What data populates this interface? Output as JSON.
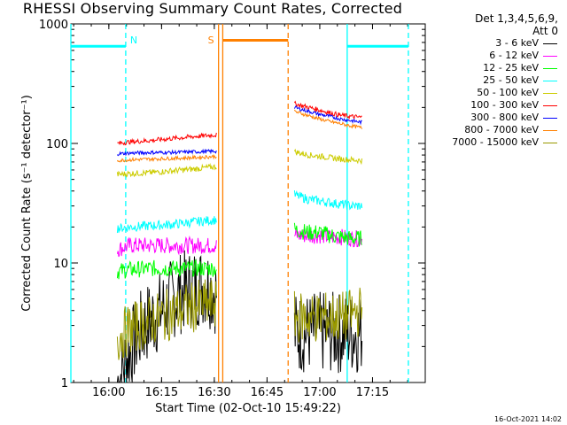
{
  "chart_data": {
    "type": "line",
    "title": "RHESSI Observing Summary Count Rates, Corrected",
    "xlabel": "Start Time (02-Oct-10 15:49:22)",
    "ylabel": "Corrected Count Rate (s⁻¹ detector⁻¹)",
    "y_scale": "log",
    "ylim": [
      1,
      1000
    ],
    "xlim_minutes": [
      15.82,
      17.5
    ],
    "x_ticks": [
      {
        "t": 16.0,
        "label": "16:00"
      },
      {
        "t": 16.25,
        "label": "16:15"
      },
      {
        "t": 16.5,
        "label": "16:30"
      },
      {
        "t": 16.75,
        "label": "16:45"
      },
      {
        "t": 17.0,
        "label": "17:00"
      },
      {
        "t": 17.25,
        "label": "17:15"
      }
    ],
    "y_ticks": [
      {
        "v": 1,
        "label": "1"
      },
      {
        "v": 10,
        "label": "10"
      },
      {
        "v": 100,
        "label": "100"
      },
      {
        "v": 1000,
        "label": "1000"
      }
    ],
    "legend_header": [
      "Det 1,3,4,5,6,9,",
      "Att 0"
    ],
    "series": [
      {
        "name": "3 - 6 keV",
        "color": "#000000",
        "segments": [
          {
            "t": [
              16.04,
              16.06,
              16.08,
              16.11,
              16.14,
              16.17,
              16.21,
              16.25,
              16.29,
              16.33,
              16.38,
              16.43,
              16.47,
              16.51
            ],
            "v": [
              1.0,
              1.2,
              1.5,
              2.0,
              2.5,
              3.0,
              3.5,
              4.0,
              4.8,
              5.5,
              6.0,
              6.5,
              6.5,
              5.5
            ]
          },
          {
            "t": [
              16.88,
              16.95,
              17.0,
              17.05,
              17.1,
              17.15,
              17.2
            ],
            "v": [
              2.6,
              2.6,
              2.6,
              2.6,
              2.6,
              2.6,
              2.6
            ]
          }
        ]
      },
      {
        "name": "6 - 12 keV",
        "color": "#ff00ff",
        "segments": [
          {
            "t": [
              16.04,
              16.1,
              16.2,
              16.3,
              16.4,
              16.51
            ],
            "v": [
              13,
              14,
              14,
              14,
              14,
              14
            ]
          },
          {
            "t": [
              16.88,
              16.95,
              17.0,
              17.05,
              17.1,
              17.15,
              17.2
            ],
            "v": [
              17,
              17,
              17,
              16.5,
              16.5,
              16,
              16
            ]
          }
        ]
      },
      {
        "name": "12 - 25 keV",
        "color": "#00ff00",
        "segments": [
          {
            "t": [
              16.04,
              16.1,
              16.2,
              16.3,
              16.4,
              16.51
            ],
            "v": [
              8.5,
              8.8,
              9,
              9,
              9,
              9
            ]
          },
          {
            "t": [
              16.88,
              16.95,
              17.0,
              17.05,
              17.1,
              17.15,
              17.2
            ],
            "v": [
              19,
              18,
              18,
              17,
              16.5,
              16,
              16
            ]
          }
        ]
      },
      {
        "name": "25 - 50 keV",
        "color": "#00ffff",
        "segments": [
          {
            "t": [
              16.04,
              16.1,
              16.2,
              16.3,
              16.4,
              16.51
            ],
            "v": [
              19.5,
              20,
              20.5,
              21,
              22,
              23
            ]
          },
          {
            "t": [
              16.88,
              16.95,
              17.0,
              17.05,
              17.1,
              17.15,
              17.2
            ],
            "v": [
              37,
              34,
              33,
              32,
              31,
              30,
              30
            ]
          }
        ]
      },
      {
        "name": "50 - 100 keV",
        "color": "#cccc00",
        "segments": [
          {
            "t": [
              16.04,
              16.1,
              16.2,
              16.3,
              16.4,
              16.51
            ],
            "v": [
              55,
              56,
              57,
              59,
              61,
              64
            ]
          },
          {
            "t": [
              16.88,
              16.95,
              17.0,
              17.05,
              17.1,
              17.15,
              17.2
            ],
            "v": [
              85,
              80,
              78,
              76,
              74,
              73,
              72
            ]
          }
        ]
      },
      {
        "name": "100 - 300 keV",
        "color": "#ff0000",
        "segments": [
          {
            "t": [
              16.04,
              16.1,
              16.2,
              16.3,
              16.4,
              16.51
            ],
            "v": [
              100,
              103,
              106,
              110,
              114,
              118
            ]
          },
          {
            "t": [
              16.88,
              16.95,
              17.0,
              17.05,
              17.1,
              17.15,
              17.2
            ],
            "v": [
              215,
              200,
              190,
              180,
              172,
              168,
              165
            ]
          }
        ]
      },
      {
        "name": "300 - 800 keV",
        "color": "#0000ff",
        "segments": [
          {
            "t": [
              16.04,
              16.1,
              16.2,
              16.3,
              16.4,
              16.51
            ],
            "v": [
              82,
              83,
              84,
              84,
              85,
              86
            ]
          },
          {
            "t": [
              16.88,
              16.95,
              17.0,
              17.05,
              17.1,
              17.15,
              17.2
            ],
            "v": [
              200,
              185,
              175,
              168,
              160,
              155,
              150
            ]
          }
        ]
      },
      {
        "name": "800 - 7000 keV",
        "color": "#ff8000",
        "segments": [
          {
            "t": [
              16.04,
              16.1,
              16.2,
              16.3,
              16.4,
              16.51
            ],
            "v": [
              72,
              73,
              74,
              75,
              76,
              78
            ]
          },
          {
            "t": [
              16.88,
              16.95,
              17.0,
              17.05,
              17.1,
              17.15,
              17.2
            ],
            "v": [
              185,
              170,
              160,
              152,
              146,
              140,
              135
            ]
          }
        ]
      },
      {
        "name": "7000 - 15000 keV",
        "color": "#999900",
        "segments": [
          {
            "t": [
              16.04,
              16.1,
              16.2,
              16.3,
              16.4,
              16.51
            ],
            "v": [
              2.4,
              2.8,
              3.3,
              3.8,
              4.3,
              4.6
            ]
          },
          {
            "t": [
              16.88,
              16.95,
              17.0,
              17.05,
              17.1,
              17.15,
              17.2
            ],
            "v": [
              3.5,
              3.5,
              3.5,
              3.5,
              3.5,
              3.7,
              4.0
            ]
          }
        ]
      }
    ],
    "annotations": [
      {
        "type": "night",
        "label": "N",
        "color": "#00ffff",
        "edges": [
          15.82,
          16.08,
          17.13,
          17.42
        ],
        "bars": [
          {
            "t0": 15.82,
            "t1": 16.08,
            "v": 650
          },
          {
            "t0": 17.13,
            "t1": 17.42,
            "v": 650
          }
        ]
      },
      {
        "type": "saa",
        "label": "S",
        "color": "#ff8000",
        "edges": [
          16.52,
          16.54,
          16.85
        ],
        "bars": [
          {
            "t0": 16.54,
            "t1": 16.85,
            "v": 730
          }
        ]
      }
    ]
  },
  "footer": {
    "timestamp": "16-Oct-2021 14:02"
  }
}
